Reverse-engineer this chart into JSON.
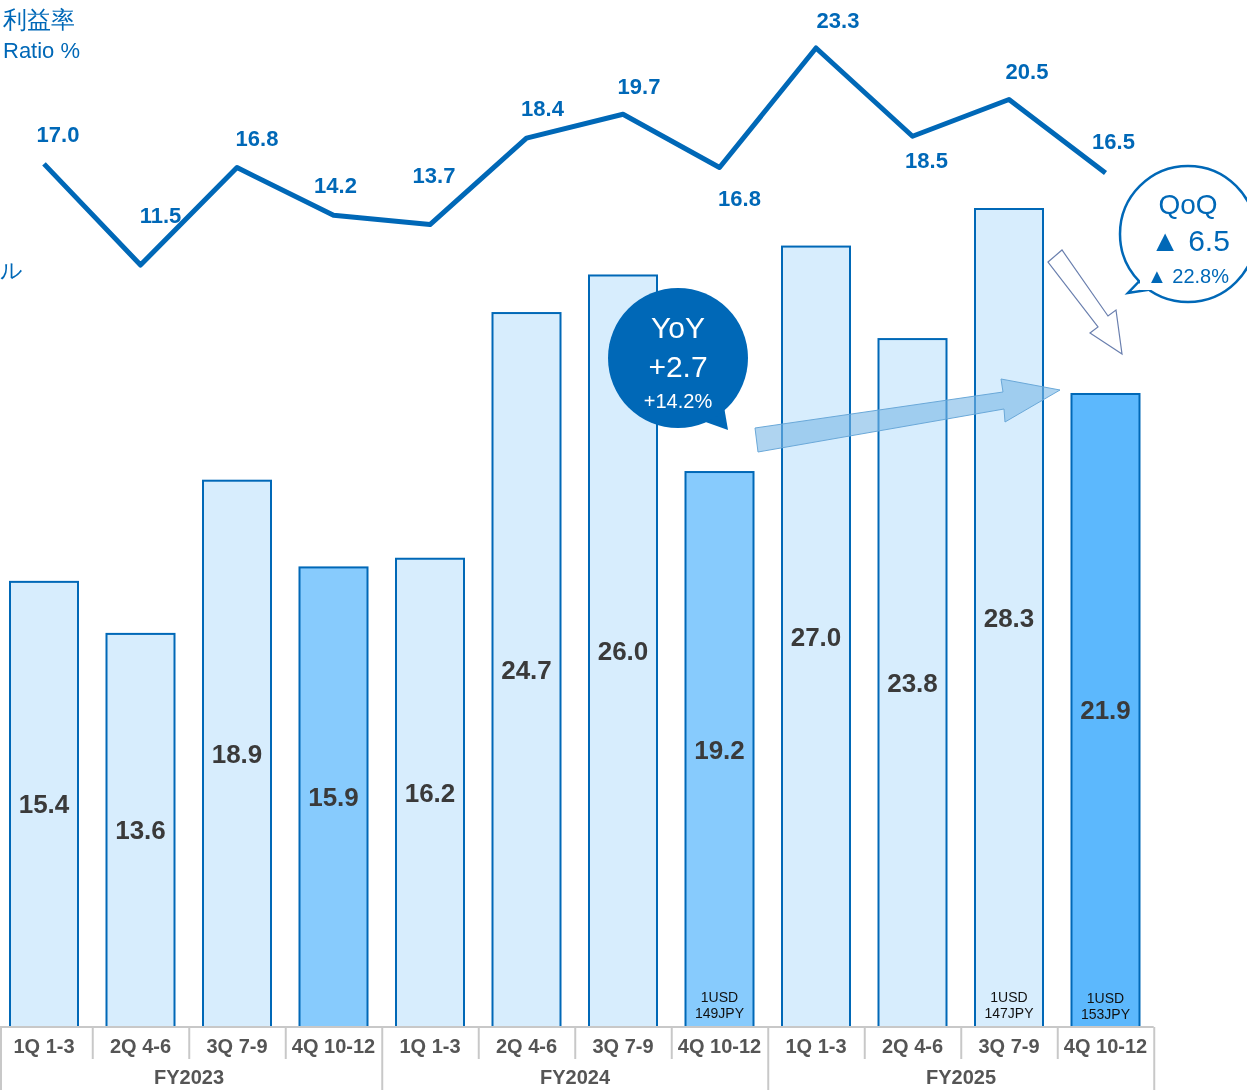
{
  "chart_data": {
    "type": "bar",
    "categories": [
      "1Q 1-3",
      "2Q 4-6",
      "3Q 7-9",
      "4Q 10-12",
      "1Q 1-3",
      "2Q 4-6",
      "3Q 7-9",
      "4Q 10-12",
      "1Q 1-3",
      "2Q 4-6",
      "3Q 7-9",
      "4Q 10-12"
    ],
    "series": [
      {
        "colors": [
          "#d7edfd",
          "#d7edfd",
          "#d7edfd",
          "#87cbfd",
          "#d7edfd",
          "#d7edfd",
          "#d7edfd",
          "#87cbfd",
          "#d7edfd",
          "#d7edfd",
          "#d7edfd",
          "#5cb8fd"
        ],
        "values": [
          15.4,
          13.6,
          18.9,
          15.9,
          16.2,
          24.7,
          26.0,
          19.2,
          27.0,
          23.8,
          28.3,
          21.9
        ],
        "value_labels": [
          "15.4",
          "13.6",
          "18.9",
          "15.9",
          "16.2",
          "24.7",
          "26.0",
          "19.2",
          "27.0",
          "23.8",
          "28.3",
          "21.9"
        ]
      },
      {
        "type": "line",
        "axis": "y2",
        "color": "#0068b7",
        "values": [
          17.0,
          11.5,
          16.8,
          14.2,
          13.7,
          18.4,
          19.7,
          16.8,
          23.3,
          18.5,
          20.5,
          16.5
        ],
        "value_labels": [
          "17.0",
          "11.5",
          "16.8",
          "14.2",
          "13.7",
          "18.4",
          "19.7",
          "16.8",
          "23.3",
          "18.5",
          "20.5",
          "16.5"
        ]
      }
    ],
    "tick_labels": "x",
    "marker": "none",
    "line_style": "solid",
    "annotations": [
      "利益率",
      "Ratio %",
      "ル",
      "YoY",
      "+2.7",
      "+14.2%",
      "QoQ",
      "▲ 6.5",
      "▲ 22.8%",
      "1USD",
      "149JPY",
      "1USD",
      "147JPY",
      "1USD",
      "153JPY",
      "FY2023",
      "FY2024",
      "FY2025"
    ]
  }
}
